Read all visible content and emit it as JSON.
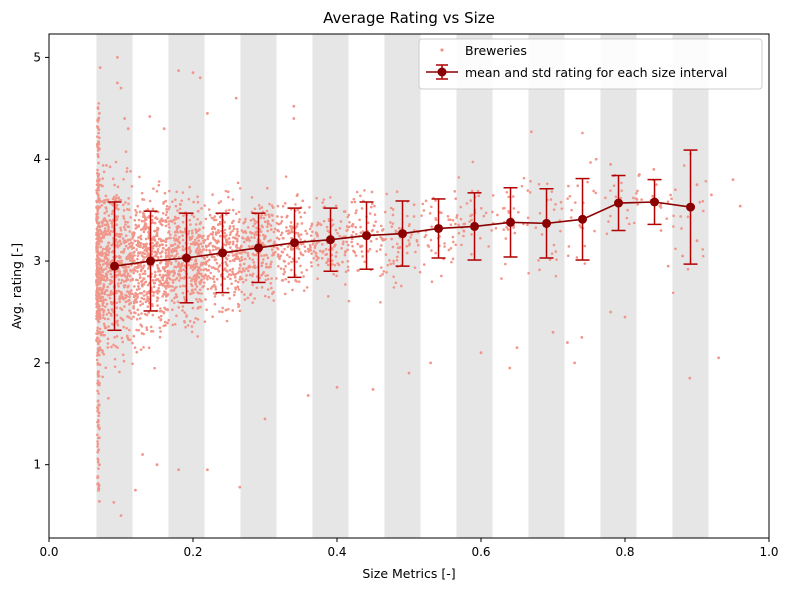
{
  "chart_data": {
    "type": "scatter",
    "title": "Average Rating vs Size",
    "xlabel": "Size Metrics [-]",
    "ylabel": "Avg. rating [-]",
    "xlim": [
      0.0,
      1.0
    ],
    "ylim": [
      0.28,
      5.23
    ],
    "x_ticks": [
      "0.0",
      "0.2",
      "0.4",
      "0.6",
      "0.8",
      "1.0"
    ],
    "y_ticks": [
      "1",
      "2",
      "3",
      "4",
      "5"
    ],
    "grid": false,
    "legend_position": "top-right",
    "shaded_intervals": [
      [
        0.066,
        0.116
      ],
      [
        0.166,
        0.216
      ],
      [
        0.266,
        0.316
      ],
      [
        0.366,
        0.416
      ],
      [
        0.466,
        0.516
      ],
      [
        0.566,
        0.616
      ],
      [
        0.666,
        0.716
      ],
      [
        0.766,
        0.816
      ],
      [
        0.866,
        0.916
      ]
    ],
    "series": [
      {
        "name": "Breweries",
        "kind": "scatter",
        "color": "#f1968a",
        "note_points": "dense cloud; a representative subset of visible points",
        "points": [
          [
            0.07,
            0.64
          ],
          [
            0.07,
            1.0
          ],
          [
            0.07,
            1.36
          ],
          [
            0.07,
            1.8
          ],
          [
            0.07,
            2.3
          ],
          [
            0.07,
            2.8
          ],
          [
            0.07,
            3.2
          ],
          [
            0.07,
            3.6
          ],
          [
            0.07,
            4.1
          ],
          [
            0.071,
            4.9
          ],
          [
            0.07,
            4.45
          ],
          [
            0.09,
            0.63
          ],
          [
            0.1,
            0.5
          ],
          [
            0.095,
            4.75
          ],
          [
            0.095,
            5.0
          ],
          [
            0.1,
            4.7
          ],
          [
            0.105,
            4.4
          ],
          [
            0.11,
            4.3
          ],
          [
            0.12,
            0.75
          ],
          [
            0.13,
            1.1
          ],
          [
            0.14,
            4.42
          ],
          [
            0.15,
            1.0
          ],
          [
            0.16,
            4.3
          ],
          [
            0.18,
            4.87
          ],
          [
            0.2,
            4.85
          ],
          [
            0.21,
            4.8
          ],
          [
            0.22,
            4.45
          ],
          [
            0.18,
            0.95
          ],
          [
            0.22,
            0.95
          ],
          [
            0.26,
            4.6
          ],
          [
            0.265,
            0.78
          ],
          [
            0.3,
            1.45
          ],
          [
            0.34,
            4.52
          ],
          [
            0.34,
            4.4
          ],
          [
            0.36,
            1.68
          ],
          [
            0.4,
            1.76
          ],
          [
            0.45,
            1.74
          ],
          [
            0.5,
            1.9
          ],
          [
            0.53,
            2.0
          ],
          [
            0.6,
            2.1
          ],
          [
            0.64,
            1.95
          ],
          [
            0.65,
            2.15
          ],
          [
            0.67,
            4.27
          ],
          [
            0.7,
            2.3
          ],
          [
            0.72,
            2.2
          ],
          [
            0.73,
            2.0
          ],
          [
            0.74,
            2.25
          ],
          [
            0.78,
            2.5
          ],
          [
            0.8,
            2.45
          ],
          [
            0.85,
            3.3
          ],
          [
            0.86,
            2.95
          ],
          [
            0.88,
            3.05
          ],
          [
            0.89,
            1.85
          ],
          [
            0.9,
            3.2
          ],
          [
            0.92,
            3.65
          ],
          [
            0.93,
            2.05
          ],
          [
            0.96,
            3.54
          ],
          [
            0.95,
            3.8
          ],
          [
            0.76,
            4.0
          ],
          [
            0.78,
            3.95
          ],
          [
            0.82,
            3.85
          ],
          [
            0.84,
            3.9
          ],
          [
            0.87,
            3.7
          ],
          [
            0.9,
            3.75
          ]
        ]
      },
      {
        "name": "mean and std rating for each size interval",
        "kind": "errorbar",
        "color": "#8b0000",
        "points": [
          {
            "x": 0.091,
            "mean": 2.95,
            "std": 0.63
          },
          {
            "x": 0.141,
            "mean": 3.0,
            "std": 0.49
          },
          {
            "x": 0.191,
            "mean": 3.03,
            "std": 0.44
          },
          {
            "x": 0.241,
            "mean": 3.08,
            "std": 0.39
          },
          {
            "x": 0.291,
            "mean": 3.13,
            "std": 0.34
          },
          {
            "x": 0.341,
            "mean": 3.18,
            "std": 0.34
          },
          {
            "x": 0.391,
            "mean": 3.21,
            "std": 0.31
          },
          {
            "x": 0.441,
            "mean": 3.25,
            "std": 0.33
          },
          {
            "x": 0.491,
            "mean": 3.27,
            "std": 0.32
          },
          {
            "x": 0.541,
            "mean": 3.32,
            "std": 0.29
          },
          {
            "x": 0.591,
            "mean": 3.34,
            "std": 0.33
          },
          {
            "x": 0.641,
            "mean": 3.38,
            "std": 0.34
          },
          {
            "x": 0.691,
            "mean": 3.37,
            "std": 0.34
          },
          {
            "x": 0.741,
            "mean": 3.41,
            "std": 0.4
          },
          {
            "x": 0.791,
            "mean": 3.57,
            "std": 0.27
          },
          {
            "x": 0.841,
            "mean": 3.58,
            "std": 0.22
          },
          {
            "x": 0.891,
            "mean": 3.53,
            "std": 0.56
          }
        ]
      }
    ]
  }
}
